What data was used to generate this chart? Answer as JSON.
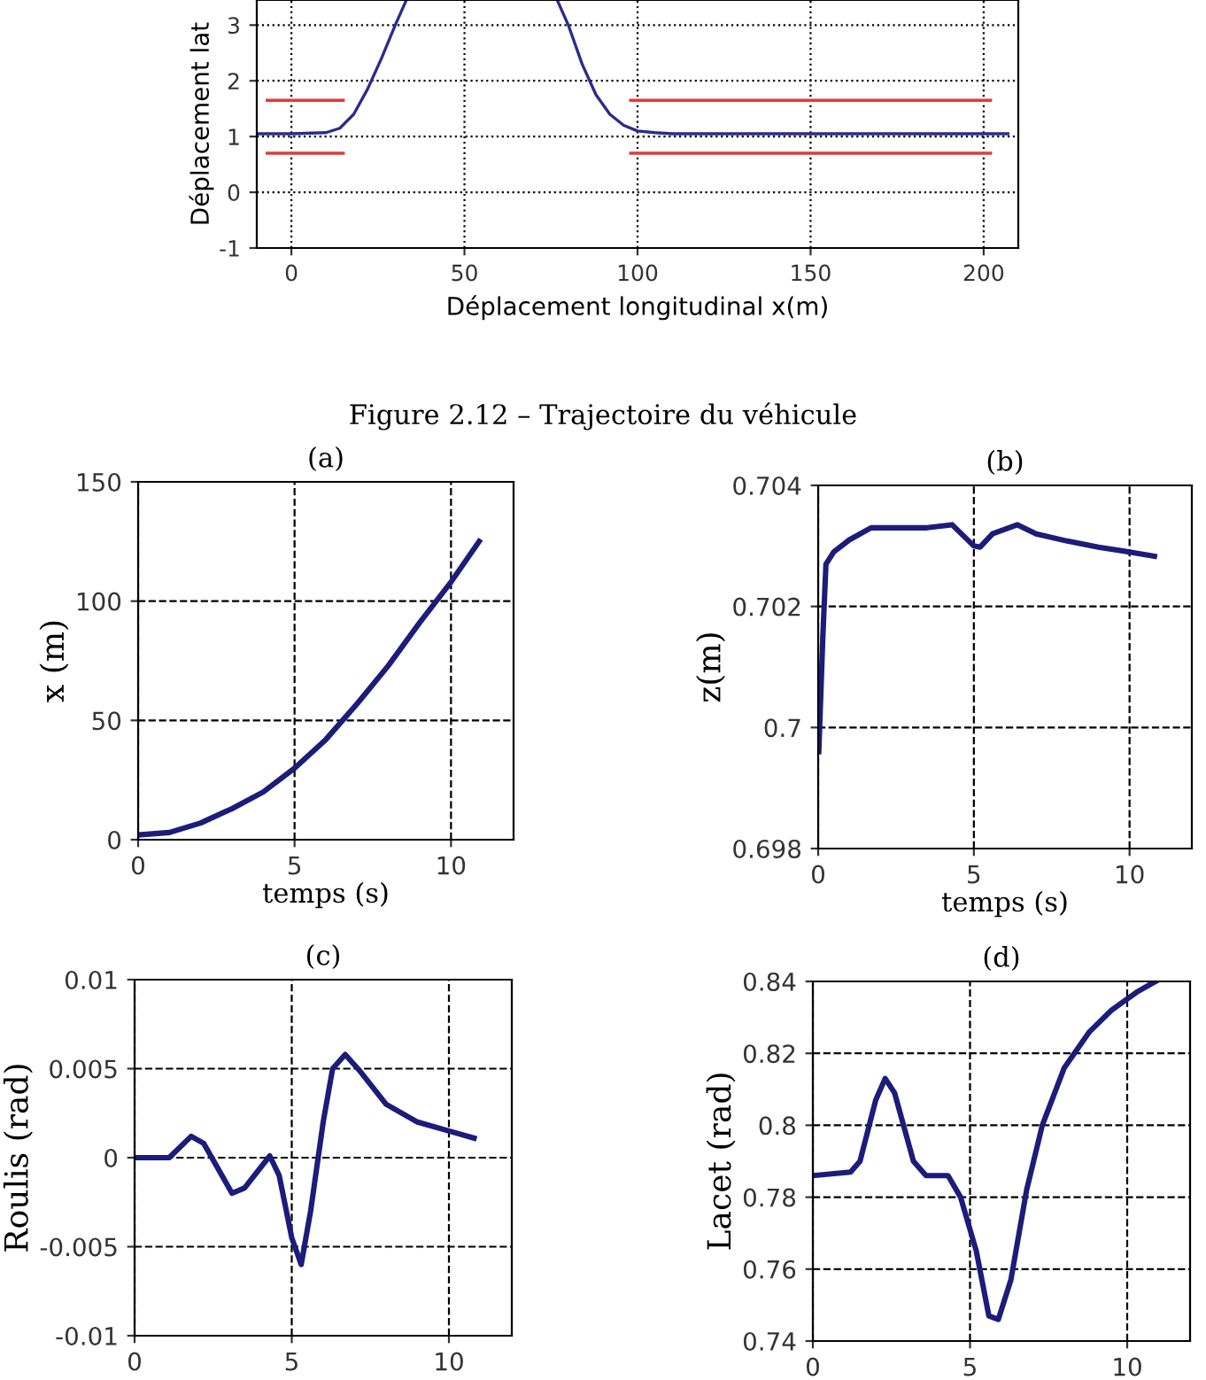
{
  "chart_data": [
    {
      "type": "line",
      "xlabel": "Déplacement longitudinal x(m)",
      "ylabel": "Déplacement lat",
      "xlim": [
        -10,
        210
      ],
      "xticks": [
        0,
        50,
        100,
        150,
        200
      ],
      "ylim": [
        -1,
        3.45
      ],
      "yticks": [
        -1,
        0,
        1,
        2,
        3
      ],
      "grid": true,
      "annotations": [
        "Figure 2.12 – Trajectoire du véhicule"
      ],
      "series": [
        {
          "color": "#2b2b8c",
          "x": [
            -10,
            0,
            10,
            14,
            18,
            22,
            26,
            30,
            33,
            55,
            77,
            80,
            84,
            88,
            92,
            96,
            100,
            105,
            110,
            150,
            207
          ],
          "values": [
            1.05,
            1.05,
            1.07,
            1.15,
            1.4,
            1.85,
            2.4,
            3.0,
            3.42,
            null,
            3.42,
            3.0,
            2.3,
            1.75,
            1.4,
            1.2,
            1.1,
            1.07,
            1.05,
            1.05,
            1.05
          ]
        },
        {
          "color": "#e03a3a",
          "x": [
            -7,
            15
          ],
          "values": [
            1.65,
            1.65
          ]
        },
        {
          "color": "#e03a3a",
          "x": [
            -7,
            15
          ],
          "values": [
            0.7,
            0.7
          ]
        },
        {
          "color": "#e03a3a",
          "x": [
            98,
            202
          ],
          "values": [
            1.65,
            1.65
          ]
        },
        {
          "color": "#e03a3a",
          "x": [
            98,
            202
          ],
          "values": [
            0.7,
            0.7
          ]
        }
      ]
    },
    {
      "type": "line",
      "title": "(a)",
      "xlabel": "temps (s)",
      "ylabel": "x (m)",
      "xlim": [
        0,
        12
      ],
      "xticks": [
        0,
        5,
        10
      ],
      "ylim": [
        0,
        150
      ],
      "yticks": [
        0,
        50,
        100,
        150
      ],
      "grid": true,
      "series": [
        {
          "color": "#1c1c7a",
          "x": [
            0,
            1,
            2,
            3,
            4,
            5,
            6,
            7,
            8,
            9,
            10,
            10.9
          ],
          "values": [
            2,
            3,
            7,
            13,
            20,
            30,
            42,
            57,
            73,
            91,
            108,
            125
          ]
        }
      ]
    },
    {
      "type": "line",
      "title": "(b)",
      "xlabel": "temps (s)",
      "ylabel": "z(m)",
      "xlim": [
        0,
        12
      ],
      "xticks": [
        0,
        5,
        10
      ],
      "ylim": [
        0.698,
        0.704
      ],
      "yticks": [
        0.698,
        {
          "value": 0.7,
          "label": "0.7"
        },
        0.702,
        0.704
      ],
      "grid": true,
      "series": [
        {
          "color": "#1c1c7a",
          "x": [
            0.02,
            0.15,
            0.25,
            0.5,
            1,
            1.7,
            3.5,
            4.3,
            5.0,
            5.2,
            5.6,
            6.4,
            7,
            8,
            9,
            10,
            10.8
          ],
          "values": [
            0.6996,
            0.7015,
            0.7027,
            0.7029,
            0.7031,
            0.7033,
            0.7033,
            0.70335,
            0.703,
            0.70298,
            0.7032,
            0.70335,
            0.7032,
            0.70308,
            0.70298,
            0.7029,
            0.70283
          ]
        }
      ]
    },
    {
      "type": "line",
      "title": "(c)",
      "ylabel": "Roulis (rad)",
      "xlim": [
        0,
        12
      ],
      "xticks": [
        0,
        5,
        10
      ],
      "ylim": [
        -0.01,
        0.01
      ],
      "yticks": [
        -0.01,
        -0.005,
        0,
        0.005,
        0.01
      ],
      "grid": true,
      "series": [
        {
          "color": "#1c1c7a",
          "x": [
            0,
            1.1,
            1.8,
            2.2,
            3.1,
            3.5,
            4.3,
            4.6,
            5.0,
            5.3,
            5.6,
            6.0,
            6.3,
            6.7,
            7.2,
            8,
            9,
            10,
            10.8
          ],
          "values": [
            0,
            0,
            0.0012,
            0.0008,
            -0.002,
            -0.0017,
            0.0001,
            -0.001,
            -0.0045,
            -0.006,
            -0.003,
            0.002,
            0.005,
            0.0058,
            0.0048,
            0.003,
            0.002,
            0.0015,
            0.0011
          ]
        }
      ]
    },
    {
      "type": "line",
      "title": "(d)",
      "ylabel": "Lacet (rad)",
      "xlim": [
        0,
        12
      ],
      "xticks": [
        0,
        5,
        10
      ],
      "ylim": [
        0.74,
        0.84
      ],
      "yticks": [
        0.74,
        0.76,
        0.78,
        {
          "value": 0.8,
          "label": "0.8"
        },
        0.82,
        0.84
      ],
      "grid": true,
      "series": [
        {
          "color": "#1c1c7a",
          "x": [
            0,
            1.2,
            1.5,
            2,
            2.3,
            2.6,
            3.2,
            3.6,
            4.3,
            4.7,
            5.2,
            5.6,
            5.9,
            6.3,
            6.8,
            7.3,
            8,
            8.8,
            9.5,
            10.3,
            10.9
          ],
          "values": [
            0.786,
            0.787,
            0.79,
            0.807,
            0.813,
            0.809,
            0.79,
            0.786,
            0.786,
            0.78,
            0.765,
            0.747,
            0.746,
            0.757,
            0.782,
            0.8,
            0.816,
            0.826,
            0.832,
            0.837,
            0.84
          ]
        }
      ]
    }
  ]
}
